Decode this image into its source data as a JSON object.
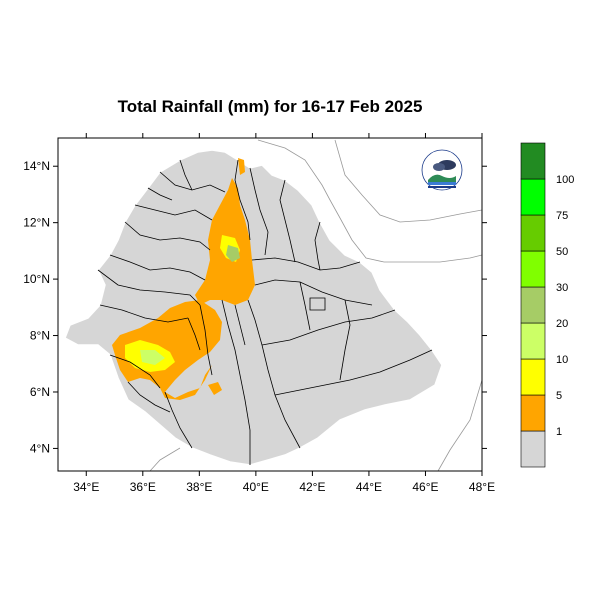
{
  "title": "Total Rainfall (mm) for 16-17 Feb 2025",
  "x_ticks": [
    "34°E",
    "36°E",
    "38°E",
    "40°E",
    "42°E",
    "44°E",
    "46°E",
    "48°E"
  ],
  "y_ticks": [
    "14°N",
    "12°N",
    "10°N",
    "8°N",
    "6°N",
    "4°N"
  ],
  "legend": {
    "labels": [
      "1",
      "5",
      "10",
      "20",
      "30",
      "50",
      "75",
      "100"
    ],
    "bins": [
      {
        "color": "#d6d6d6"
      },
      {
        "color": "#ffa500"
      },
      {
        "color": "#ffff00"
      },
      {
        "color": "#ccff66"
      },
      {
        "color": "#a6cc66"
      },
      {
        "color": "#80ff00"
      },
      {
        "color": "#66cc00"
      },
      {
        "color": "#00ff00"
      },
      {
        "color": "#228b22"
      }
    ]
  },
  "map": {
    "lon_range": [
      33,
      48
    ],
    "lat_range": [
      3.2,
      15
    ],
    "land_color": "#d6d6d6",
    "border_color": "#000000",
    "coast_color": "#999999"
  },
  "logo": {
    "icon": "meteorology-institute-logo"
  }
}
